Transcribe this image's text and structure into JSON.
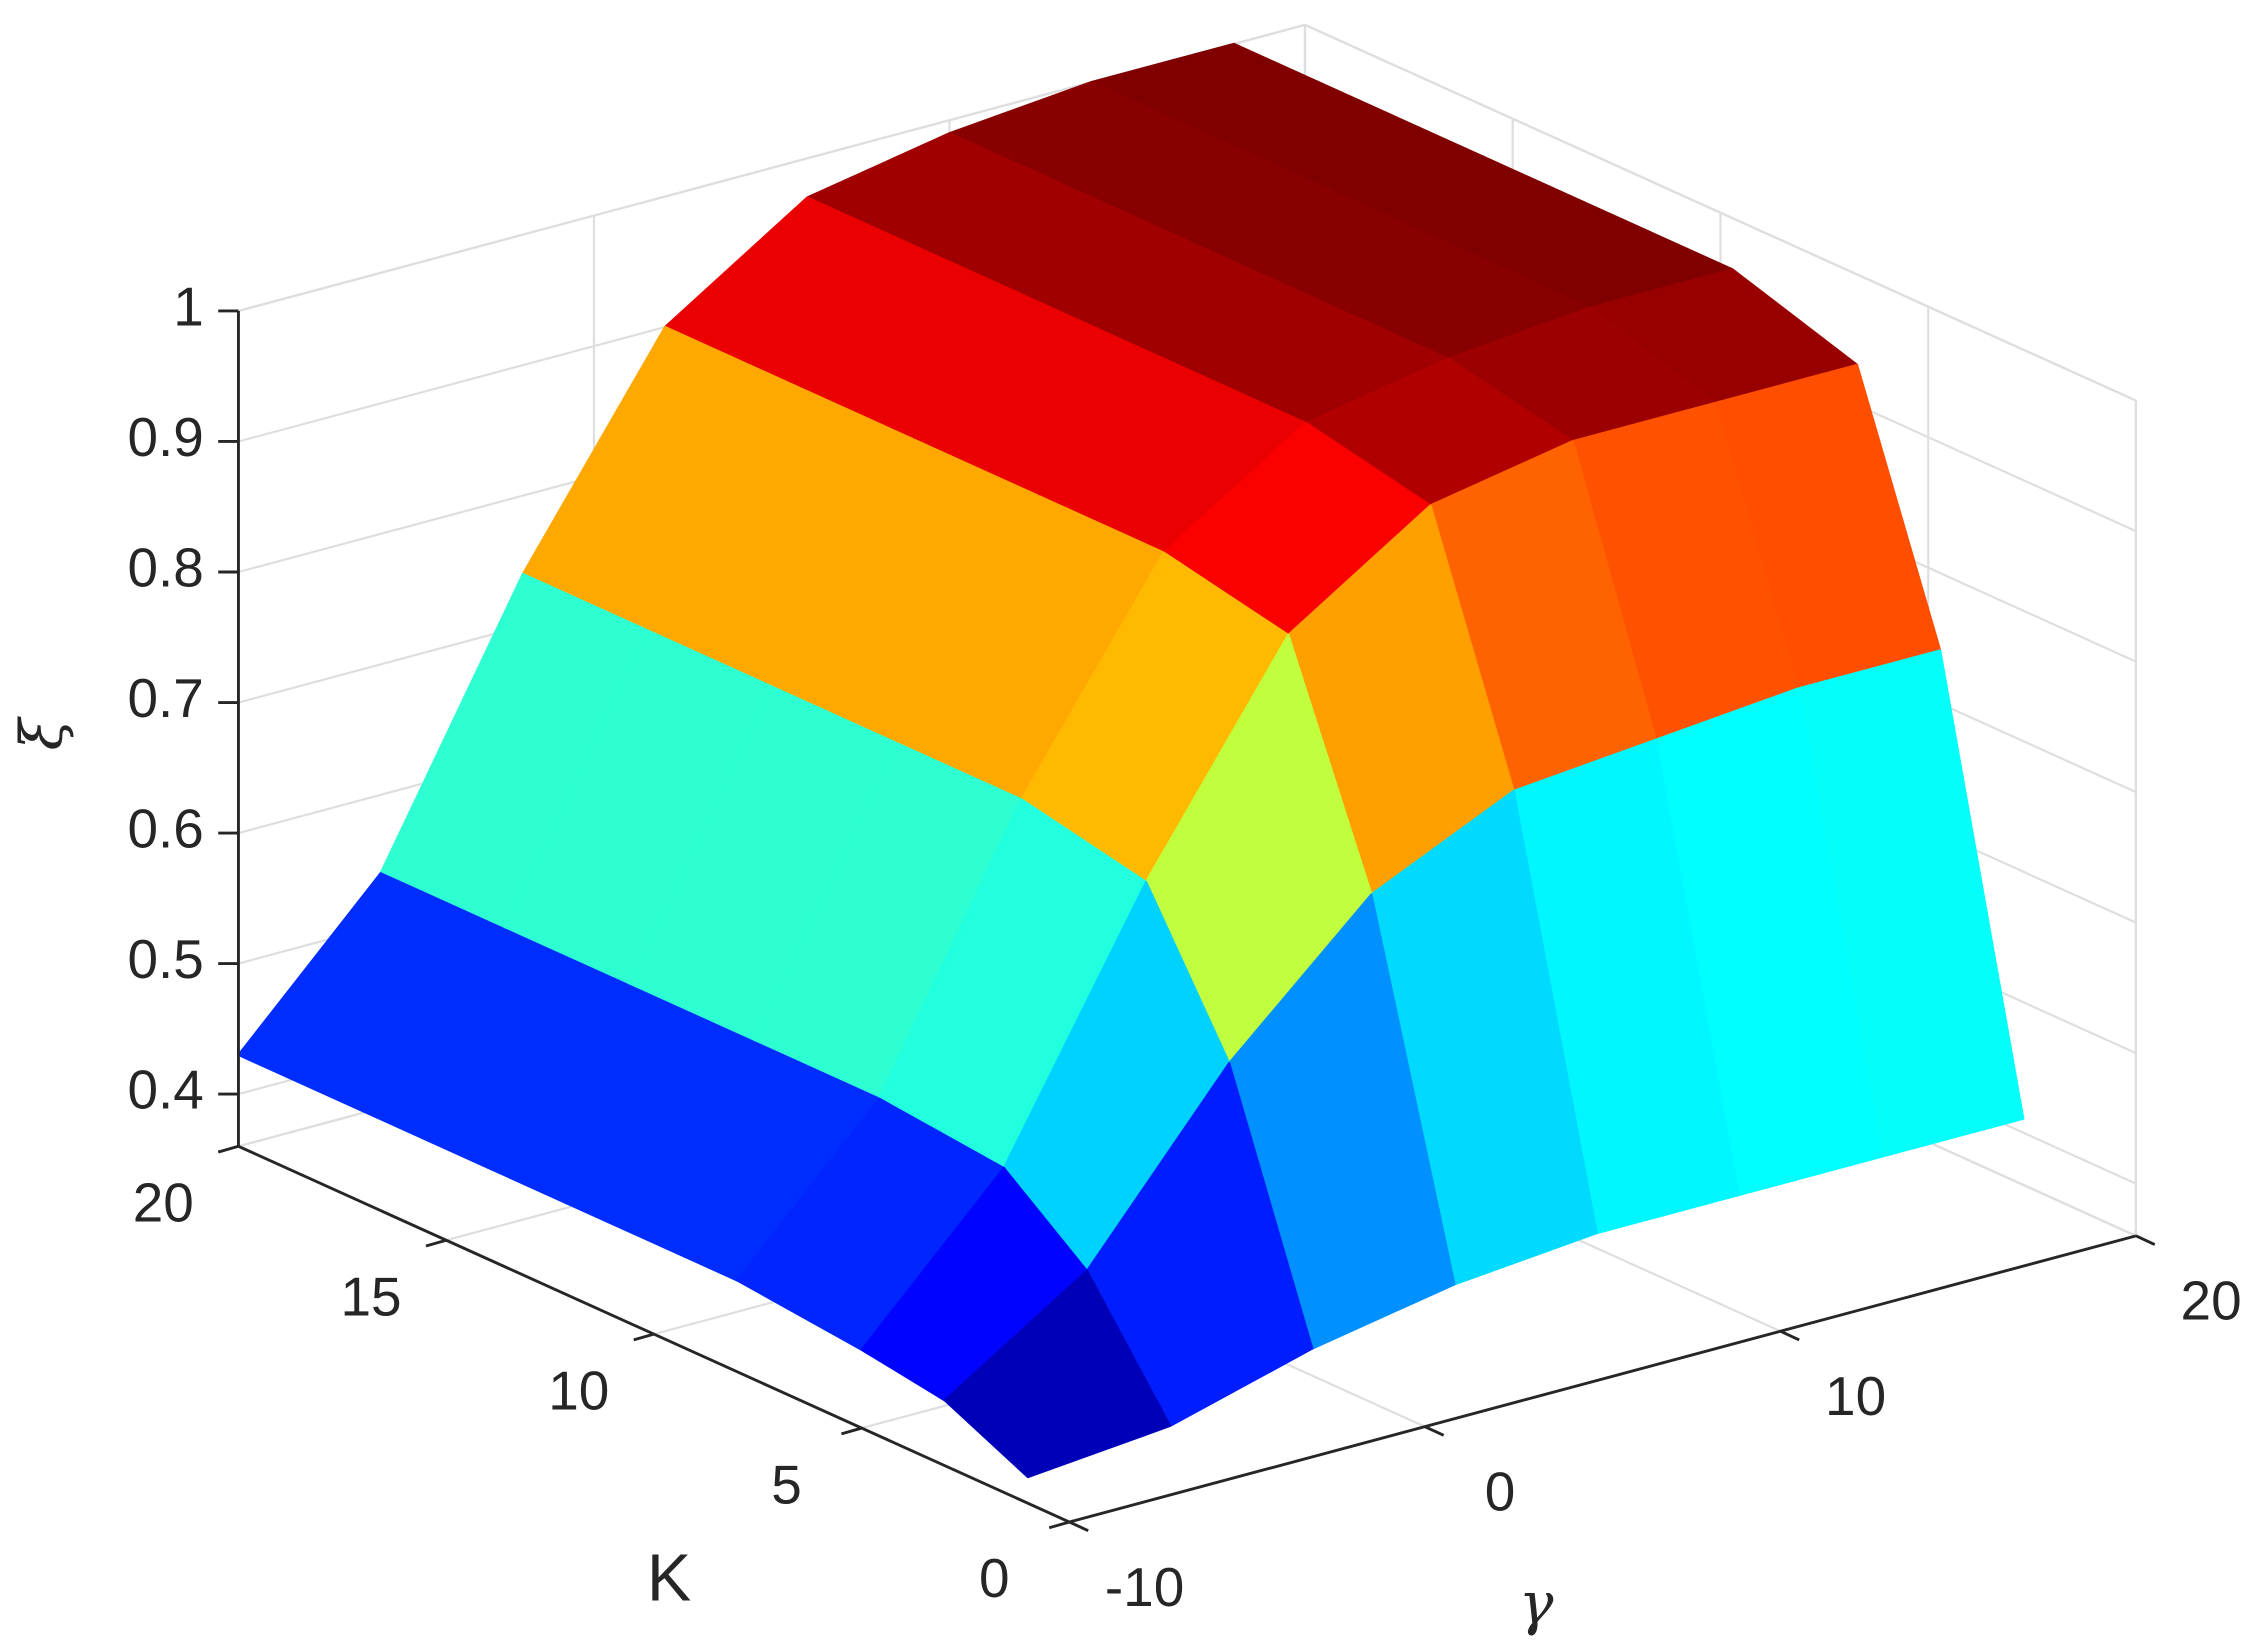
{
  "chart_data": {
    "type": "surface",
    "xlabel": "γ",
    "ylabel": "K",
    "zlabel": "ξ",
    "x": [
      -10,
      -6,
      -2,
      2,
      6,
      10,
      14,
      18
    ],
    "y": [
      1,
      3,
      5,
      8,
      11,
      14,
      17,
      20
    ],
    "z": [
      [
        0.38,
        0.39,
        0.42,
        0.44,
        0.45,
        0.45,
        0.45,
        0.45
      ],
      [
        0.41,
        0.48,
        0.61,
        0.71,
        0.76,
        0.77,
        0.78,
        0.78
      ],
      [
        0.42,
        0.53,
        0.72,
        0.88,
        0.95,
        0.97,
        0.97,
        0.97
      ],
      [
        0.43,
        0.54,
        0.74,
        0.9,
        0.97,
        0.99,
        1.0,
        1.0
      ],
      [
        0.43,
        0.54,
        0.74,
        0.9,
        0.97,
        0.99,
        1.0,
        1.0
      ],
      [
        0.43,
        0.54,
        0.74,
        0.9,
        0.97,
        0.99,
        1.0,
        1.0
      ],
      [
        0.43,
        0.54,
        0.74,
        0.9,
        0.97,
        0.99,
        1.0,
        1.0
      ],
      [
        0.43,
        0.54,
        0.74,
        0.9,
        0.97,
        0.99,
        1.0,
        1.0
      ]
    ],
    "xlim": [
      -10,
      20
    ],
    "xticks": [
      -10,
      0,
      10,
      20
    ],
    "ylim": [
      0,
      20
    ],
    "yticks": [
      0,
      5,
      10,
      15,
      20
    ],
    "zlim": [
      0.36,
      1
    ],
    "zticks": [
      0.4,
      0.5,
      0.6,
      0.7,
      0.8,
      0.9,
      1
    ],
    "colormap": "jet",
    "grid": true
  }
}
